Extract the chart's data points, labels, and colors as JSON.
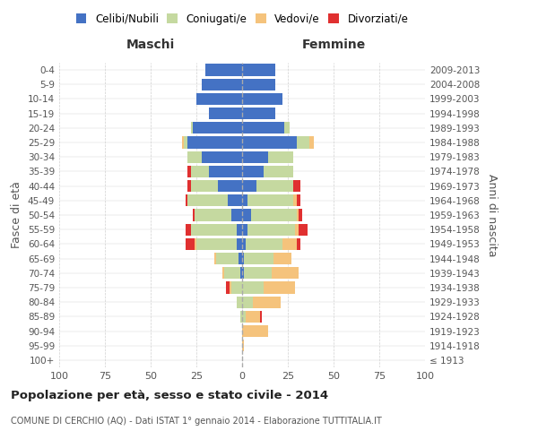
{
  "age_groups": [
    "100+",
    "95-99",
    "90-94",
    "85-89",
    "80-84",
    "75-79",
    "70-74",
    "65-69",
    "60-64",
    "55-59",
    "50-54",
    "45-49",
    "40-44",
    "35-39",
    "30-34",
    "25-29",
    "20-24",
    "15-19",
    "10-14",
    "5-9",
    "0-4"
  ],
  "birth_years": [
    "≤ 1913",
    "1914-1918",
    "1919-1923",
    "1924-1928",
    "1929-1933",
    "1934-1938",
    "1939-1943",
    "1944-1948",
    "1949-1953",
    "1954-1958",
    "1959-1963",
    "1964-1968",
    "1969-1973",
    "1974-1978",
    "1979-1983",
    "1984-1988",
    "1989-1993",
    "1994-1998",
    "1999-2003",
    "2004-2008",
    "2009-2013"
  ],
  "maschi": {
    "celibi": [
      0,
      0,
      0,
      0,
      0,
      0,
      1,
      2,
      3,
      3,
      6,
      8,
      13,
      18,
      22,
      30,
      27,
      18,
      25,
      22,
      20
    ],
    "coniugati": [
      0,
      0,
      0,
      1,
      3,
      6,
      9,
      12,
      22,
      25,
      20,
      22,
      15,
      10,
      8,
      2,
      1,
      0,
      0,
      0,
      0
    ],
    "vedovi": [
      0,
      0,
      0,
      0,
      0,
      1,
      1,
      1,
      1,
      0,
      0,
      0,
      0,
      0,
      0,
      1,
      0,
      0,
      0,
      0,
      0
    ],
    "divorziati": [
      0,
      0,
      0,
      0,
      0,
      2,
      0,
      0,
      5,
      3,
      1,
      1,
      2,
      2,
      0,
      0,
      0,
      0,
      0,
      0,
      0
    ]
  },
  "femmine": {
    "nubili": [
      0,
      0,
      0,
      0,
      0,
      0,
      1,
      1,
      2,
      3,
      5,
      3,
      8,
      12,
      14,
      30,
      23,
      18,
      22,
      18,
      18
    ],
    "coniugate": [
      0,
      0,
      0,
      2,
      6,
      12,
      15,
      16,
      20,
      26,
      25,
      25,
      20,
      16,
      14,
      7,
      3,
      0,
      0,
      0,
      0
    ],
    "vedove": [
      0,
      1,
      14,
      8,
      15,
      17,
      15,
      10,
      8,
      2,
      1,
      2,
      0,
      0,
      0,
      2,
      0,
      0,
      0,
      0,
      0
    ],
    "divorziate": [
      0,
      0,
      0,
      1,
      0,
      0,
      0,
      0,
      2,
      5,
      2,
      2,
      4,
      0,
      0,
      0,
      0,
      0,
      0,
      0,
      0
    ]
  },
  "colors": {
    "celibi_nubili": "#4472c4",
    "coniugati": "#c5d9a0",
    "vedovi": "#f5c37c",
    "divorziati": "#e03030"
  },
  "xlim": 100,
  "title": "Popolazione per età, sesso e stato civile - 2014",
  "subtitle": "COMUNE DI CERCHIO (AQ) - Dati ISTAT 1° gennaio 2014 - Elaborazione TUTTITALIA.IT",
  "ylabel_left": "Fasce di età",
  "ylabel_right": "Anni di nascita",
  "xlabel_maschi": "Maschi",
  "xlabel_femmine": "Femmine",
  "bg_color": "#ffffff",
  "grid_color": "#d0d0d0",
  "center_line_color": "#aaaaaa"
}
